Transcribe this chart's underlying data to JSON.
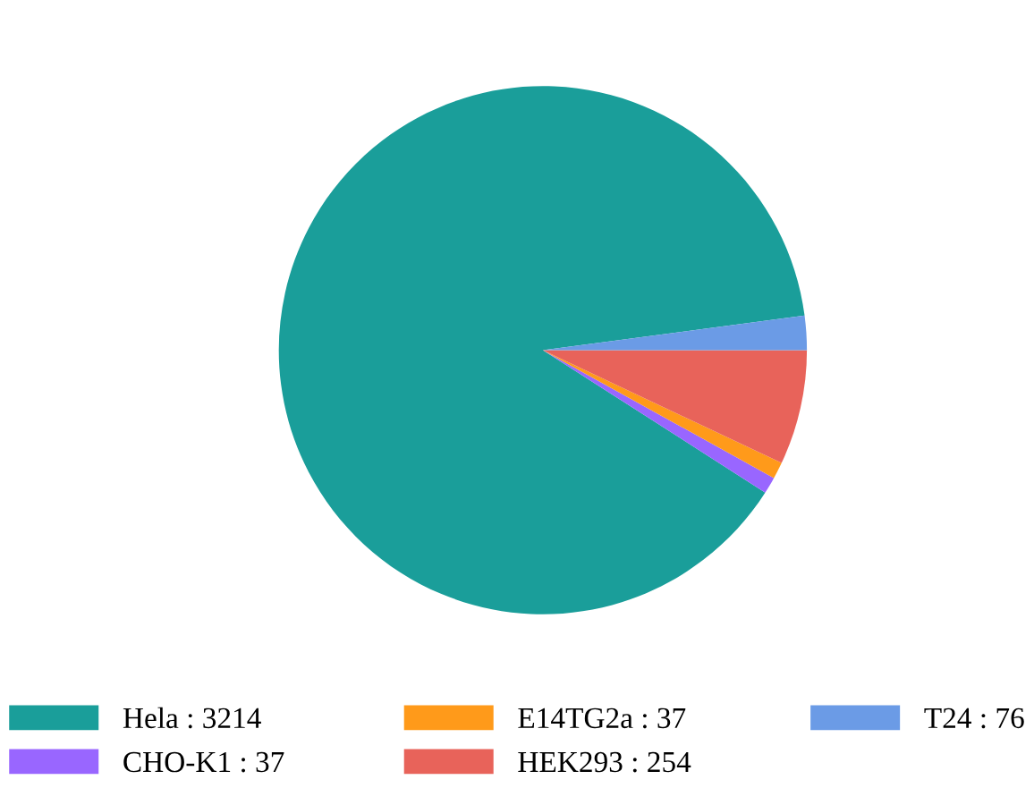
{
  "chart_data": {
    "type": "pie",
    "categories": [
      "Hela : 3214",
      "CHO-K1 : 37",
      "E14TG2a : 37",
      "HEK293 : 254",
      "T24 : 76"
    ],
    "values": [
      3214,
      37,
      37,
      254,
      76
    ],
    "colors": [
      "#1a9e9a",
      "#9966ff",
      "#ff9a1a",
      "#e8635a",
      "#6b9be6"
    ],
    "legend": "bottom"
  }
}
